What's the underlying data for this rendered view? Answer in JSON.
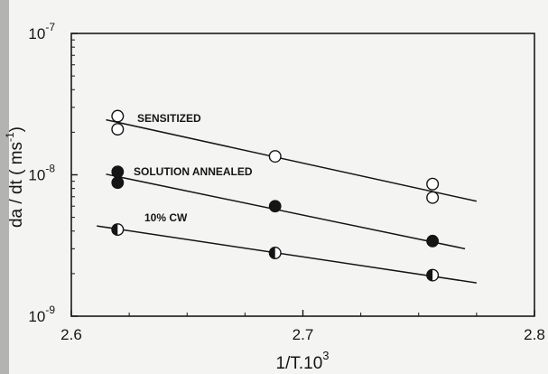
{
  "chart_data": {
    "type": "scatter",
    "xlabel_main": "1/T.10",
    "xlabel_exp": "3",
    "ylabel_main": "da / dt ( ms",
    "ylabel_exp": "-1",
    "ylabel_close": ")",
    "xlim": [
      2.6,
      2.8
    ],
    "ylim": [
      1e-09,
      1e-07
    ],
    "yscale": "log",
    "x_ticks": [
      "2.6",
      "2.7",
      "2.8"
    ],
    "x_tick_values": [
      2.6,
      2.7,
      2.8
    ],
    "y_ticks": [
      {
        "value": 1e-07,
        "base": "10",
        "exp": "-7"
      },
      {
        "value": 1e-08,
        "base": "10",
        "exp": "-8"
      },
      {
        "value": 1e-09,
        "base": "10",
        "exp": "-9"
      }
    ],
    "grid": false,
    "legend": "inline annotations",
    "series": [
      {
        "name": "SENSITIZED",
        "marker": "open-circle",
        "points": [
          {
            "x": 2.62,
            "y": 2.6e-08
          },
          {
            "x": 2.62,
            "y": 2.1e-08
          },
          {
            "x": 2.688,
            "y": 1.35e-08
          },
          {
            "x": 2.756,
            "y": 8.6e-09
          },
          {
            "x": 2.756,
            "y": 6.9e-09
          }
        ],
        "fit": {
          "x": [
            2.615,
            2.775
          ],
          "y": [
            2.45e-08,
            6.5e-09
          ]
        }
      },
      {
        "name": "SOLUTION ANNEALED",
        "marker": "filled-circle",
        "points": [
          {
            "x": 2.62,
            "y": 1.05e-08
          },
          {
            "x": 2.62,
            "y": 8.8e-09
          },
          {
            "x": 2.688,
            "y": 6e-09
          },
          {
            "x": 2.756,
            "y": 3.4e-09
          }
        ],
        "fit": {
          "x": [
            2.615,
            2.77
          ],
          "y": [
            1.01e-08,
            3e-09
          ]
        }
      },
      {
        "name": "10% CW",
        "marker": "half-filled-circle",
        "points": [
          {
            "x": 2.62,
            "y": 4.1e-09
          },
          {
            "x": 2.688,
            "y": 2.8e-09
          },
          {
            "x": 2.756,
            "y": 1.95e-09
          }
        ],
        "fit": {
          "x": [
            2.611,
            2.775
          ],
          "y": [
            4.35e-09,
            1.72e-09
          ]
        }
      }
    ]
  }
}
